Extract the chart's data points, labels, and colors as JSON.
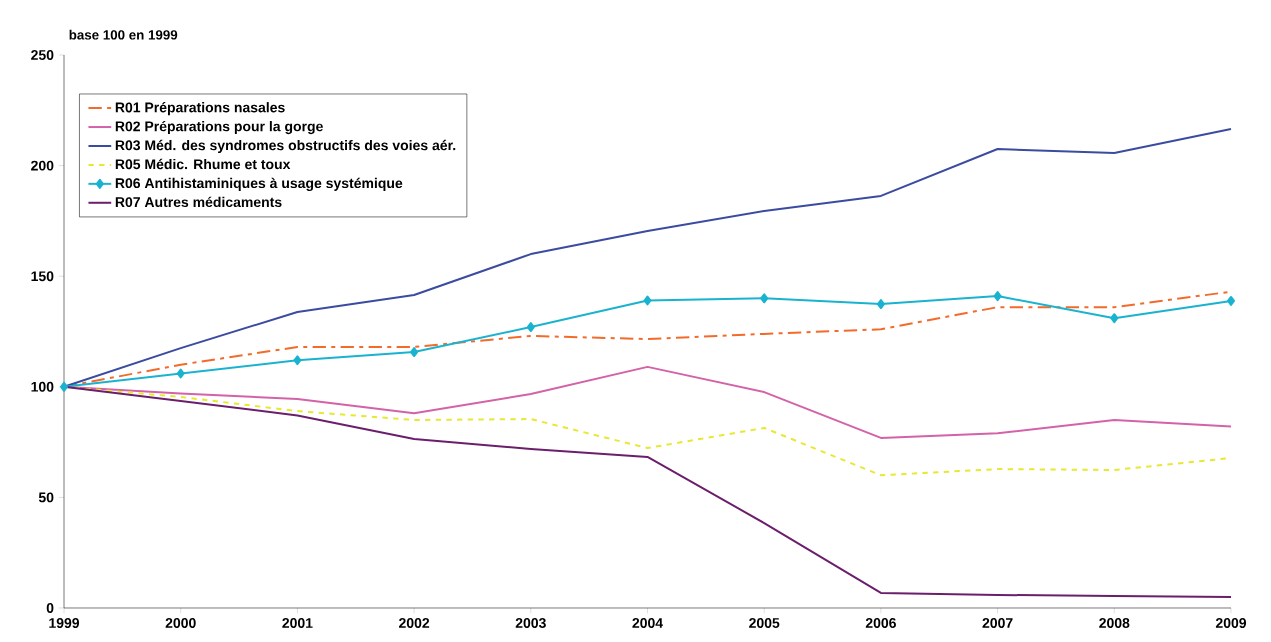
{
  "chart_data": {
    "type": "line",
    "ylabel": "base 100 en 1999",
    "x": [
      1999,
      2000,
      2001,
      2002,
      2003,
      2004,
      2005,
      2006,
      2007,
      2008,
      2009
    ],
    "xlim": [
      1999,
      2009
    ],
    "xticks": [
      1999,
      2000,
      2001,
      2002,
      2003,
      2004,
      2005,
      2006,
      2007,
      2008,
      2009
    ],
    "ylim": [
      0,
      250
    ],
    "yticks": [
      0,
      50,
      100,
      150,
      200,
      250
    ],
    "grid": false,
    "legend": "top left",
    "series": [
      {
        "name": "R01 Préparations nasales",
        "color": "#f26b2b",
        "line_style": "dashed",
        "marker": "none",
        "values": [
          100,
          110,
          118,
          118,
          123,
          121.6,
          123.9,
          126,
          136,
          136,
          143
        ]
      },
      {
        "name": "R02 Préparations pour la gorge",
        "color": "#d462a8",
        "line_style": "solid",
        "marker": "none",
        "values": [
          100,
          97,
          94.5,
          88,
          96.7,
          109,
          97.6,
          76.9,
          79,
          85,
          82
        ]
      },
      {
        "name": "R03 Méd. des syndromes obstructifs des voies aér.",
        "color": "#3b4ba0",
        "line_style": "solid",
        "marker": "none",
        "values": [
          100,
          117.5,
          133.8,
          141.5,
          160,
          170.4,
          179.5,
          186.3,
          207.5,
          205.7,
          216.5
        ]
      },
      {
        "name": "R05 Médic. Rhume et toux",
        "color": "#e8e830",
        "line_style": "dotted",
        "marker": "none",
        "values": [
          100,
          95.4,
          89,
          85,
          85.4,
          72.3,
          81.4,
          60,
          62.8,
          62.4,
          67.8
        ]
      },
      {
        "name": "R06 Antihistaminiques à usage systémique",
        "color": "#19b3cf",
        "line_style": "solid",
        "marker": "diamond",
        "values": [
          100,
          106,
          112,
          115.7,
          127,
          139,
          140,
          137.4,
          141,
          131,
          138.8
        ]
      },
      {
        "name": "R07 Autres médicaments",
        "color": "#6b1e6b",
        "line_style": "solid",
        "marker": "none",
        "values": [
          100,
          93.6,
          87,
          76.4,
          71.9,
          68.3,
          38.4,
          6.8,
          5.9,
          5.4,
          5
        ]
      }
    ]
  }
}
